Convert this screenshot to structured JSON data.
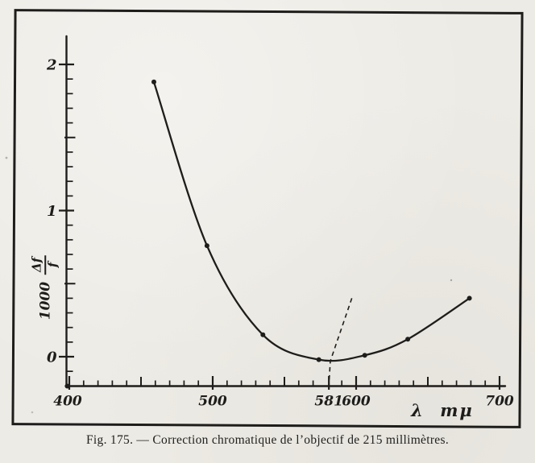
{
  "figure": {
    "caption": "Fig. 175. — Correction chromatique de l’objectif de 215 millimètres."
  },
  "colors": {
    "ink": "#1e1d1b",
    "paper": "#edebe5"
  },
  "chart_data": {
    "type": "line",
    "title": "",
    "xlabel": "λ mμ",
    "ylabel": "1000 Δf/f",
    "x_range": [
      400,
      704
    ],
    "y_range": [
      -0.2,
      2.2
    ],
    "grid": false,
    "legend": false,
    "x_axis": {
      "unit": "mμ",
      "major_ticks": [
        {
          "value": 400,
          "label": "400"
        },
        {
          "value": 500,
          "label": "500"
        },
        {
          "value": 581,
          "label": "581"
        },
        {
          "value": 600,
          "label": "600"
        },
        {
          "value": 700,
          "label": "700"
        }
      ],
      "half_major_ticks": [
        450,
        550,
        650
      ],
      "minor_tick_step": 10
    },
    "y_axis": {
      "label_coefficient": "1000",
      "label_numerator": "Δf",
      "label_denominator": "f",
      "major_ticks": [
        {
          "value": 0,
          "label": "0"
        },
        {
          "value": 1,
          "label": "1"
        },
        {
          "value": 2,
          "label": "2"
        }
      ],
      "half_major_ticks": [
        0.5,
        1.5
      ],
      "minor_tick_step": 0.1,
      "minor_tick_min": -0.1,
      "minor_tick_max": 2.0
    },
    "series": [
      {
        "name": "1000·Δf/f",
        "points": [
          {
            "lambda": 459,
            "value": 1.88
          },
          {
            "lambda": 496,
            "value": 0.76
          },
          {
            "lambda": 535,
            "value": 0.15
          },
          {
            "lambda": 574,
            "value": -0.02
          },
          {
            "lambda": 606,
            "value": 0.01
          },
          {
            "lambda": 636,
            "value": 0.12
          },
          {
            "lambda": 679,
            "value": 0.4
          }
        ]
      }
    ],
    "minimum_marker": {
      "lambda": 581,
      "label": "581",
      "apex": {
        "lambda": 597,
        "value": 0.4
      },
      "bend": {
        "lambda": 582,
        "value": -0.03
      }
    }
  }
}
